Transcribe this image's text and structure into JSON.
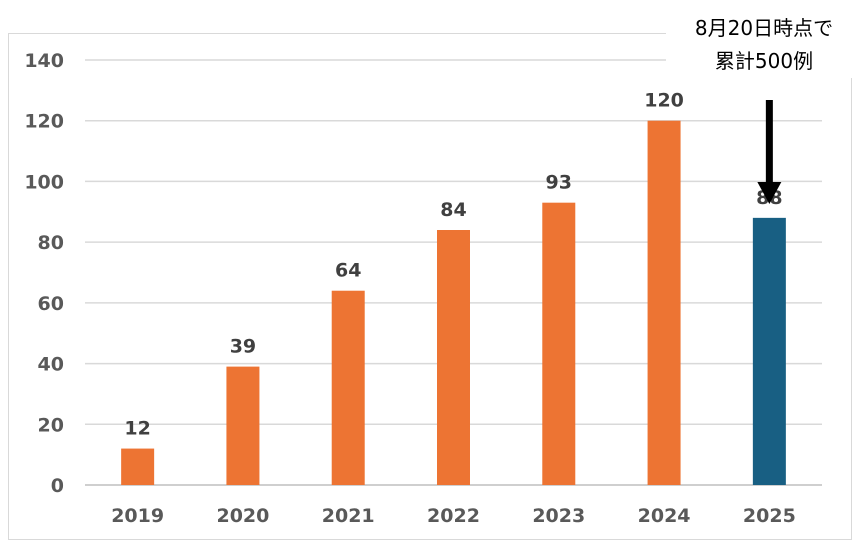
{
  "chart_data": {
    "type": "bar",
    "categories": [
      "2019",
      "2020",
      "2021",
      "2022",
      "2023",
      "2024",
      "2025"
    ],
    "values": [
      12,
      39,
      64,
      84,
      93,
      120,
      88
    ],
    "colors": [
      "#ed7433",
      "#ed7433",
      "#ed7433",
      "#ed7433",
      "#ed7433",
      "#ed7433",
      "#185f83"
    ],
    "ylim": [
      0,
      140
    ],
    "yticks": [
      "0",
      "20",
      "40",
      "60",
      "80",
      "100",
      "120",
      "140"
    ],
    "grid": true,
    "annotation": {
      "line1": "8月20日時点で",
      "line2": "累計500例",
      "target_category": "2025"
    }
  }
}
